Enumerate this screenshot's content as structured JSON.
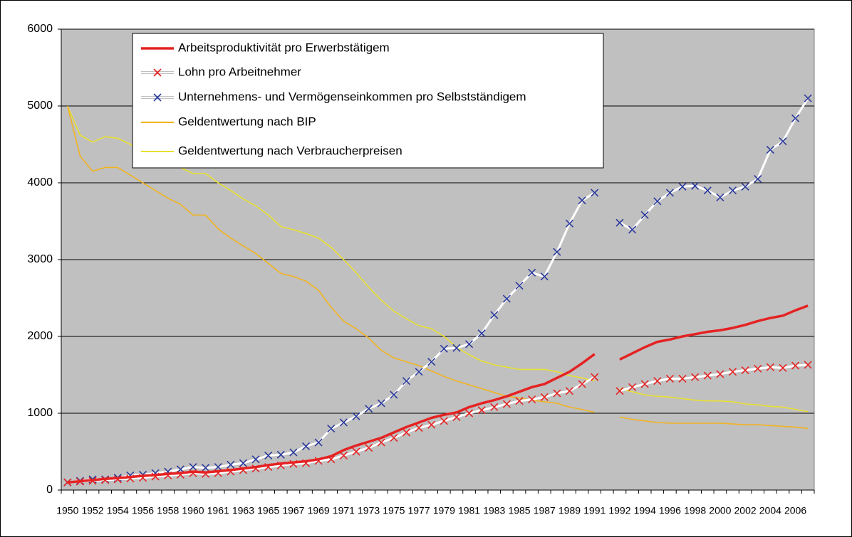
{
  "chart_data": {
    "type": "line",
    "categories": [
      "1950",
      null,
      "1952",
      null,
      "1954",
      null,
      "1956",
      null,
      "1958",
      null,
      "1960",
      null,
      "1961",
      null,
      "1963",
      null,
      "1965",
      null,
      "1967",
      null,
      "1969",
      null,
      "1971",
      null,
      "1973",
      null,
      "1975",
      null,
      "1977",
      null,
      "1979",
      null,
      "1981",
      null,
      "1983",
      null,
      "1985",
      null,
      "1987",
      null,
      "1989",
      null,
      "1991",
      null,
      "1992",
      null,
      "1994",
      null,
      "1996",
      null,
      "1998",
      null,
      "2000",
      null,
      "2002",
      null,
      "2004",
      null,
      "2006",
      null
    ],
    "ylim": [
      0,
      6000
    ],
    "yticks": [
      0,
      1000,
      2000,
      3000,
      4000,
      5000,
      6000
    ],
    "grid": true,
    "legend": "top-left",
    "series": [
      {
        "name": "Arbeitsproduktivität pro Erwerbstätigem",
        "color": "#e52222",
        "values": [
          100,
          115,
          130,
          145,
          155,
          170,
          185,
          195,
          210,
          220,
          240,
          230,
          245,
          260,
          280,
          300,
          325,
          345,
          360,
          375,
          400,
          440,
          520,
          580,
          630,
          680,
          750,
          820,
          880,
          940,
          980,
          1010,
          1080,
          1130,
          1170,
          1220,
          1280,
          1340,
          1380,
          1460,
          1540,
          1650,
          1770,
          null,
          1700,
          1780,
          1860,
          1930,
          1960,
          2000,
          2030,
          2060,
          2080,
          2110,
          2150,
          2200,
          2240,
          2270,
          2340,
          2400
        ]
      },
      {
        "name": "Lohn pro Arbeitnehmer",
        "color": "#ffffff",
        "marker_color": "#e52222",
        "values": [
          100,
          110,
          120,
          130,
          140,
          150,
          160,
          175,
          190,
          200,
          220,
          210,
          220,
          240,
          260,
          280,
          300,
          320,
          340,
          350,
          380,
          400,
          450,
          500,
          550,
          620,
          680,
          750,
          810,
          850,
          900,
          950,
          1000,
          1040,
          1080,
          1120,
          1160,
          1180,
          1210,
          1260,
          1290,
          1380,
          1470,
          null,
          1290,
          1340,
          1380,
          1420,
          1450,
          1450,
          1470,
          1490,
          1510,
          1540,
          1560,
          1580,
          1600,
          1590,
          1620,
          1630
        ]
      },
      {
        "name": "Unternehmens- und Vermögenseinkommen pro Selbstständigem",
        "color": "#ffffff",
        "marker_color": "#2b3a9c",
        "values": [
          100,
          120,
          140,
          140,
          160,
          190,
          200,
          220,
          240,
          270,
          300,
          290,
          300,
          330,
          350,
          400,
          450,
          460,
          490,
          570,
          620,
          800,
          880,
          960,
          1060,
          1130,
          1240,
          1420,
          1540,
          1670,
          1840,
          1850,
          1900,
          2040,
          2280,
          2490,
          2660,
          2830,
          2780,
          3100,
          3470,
          3770,
          3870,
          null,
          3480,
          3390,
          3580,
          3760,
          3870,
          3950,
          3960,
          3900,
          3810,
          3900,
          3950,
          4050,
          4430,
          4540,
          4840,
          5100
        ]
      },
      {
        "name": "Geldentwertung nach BIP",
        "color": "#f2b320",
        "values": [
          5000,
          4350,
          4150,
          4200,
          4200,
          4100,
          4000,
          3900,
          3800,
          3720,
          3580,
          3580,
          3400,
          3280,
          3180,
          3080,
          2950,
          2820,
          2780,
          2720,
          2600,
          2380,
          2200,
          2100,
          1980,
          1820,
          1720,
          1670,
          1620,
          1550,
          1480,
          1420,
          1370,
          1320,
          1270,
          1220,
          1200,
          1170,
          1150,
          1130,
          1080,
          1050,
          1010,
          null,
          950,
          920,
          900,
          880,
          870,
          870,
          870,
          870,
          870,
          860,
          850,
          850,
          840,
          830,
          820,
          800
        ]
      },
      {
        "name": "Geldentwertung nach Verbraucherpreisen",
        "color": "#e8e030",
        "values": [
          5000,
          4620,
          4530,
          4600,
          4580,
          4500,
          4400,
          4350,
          4280,
          4200,
          4120,
          4120,
          4000,
          3900,
          3790,
          3700,
          3580,
          3430,
          3390,
          3340,
          3280,
          3160,
          3000,
          2830,
          2640,
          2470,
          2330,
          2230,
          2140,
          2100,
          2000,
          1860,
          1760,
          1680,
          1630,
          1600,
          1570,
          1570,
          1570,
          1540,
          1490,
          1460,
          1420,
          null,
          1320,
          1280,
          1240,
          1220,
          1210,
          1190,
          1170,
          1160,
          1160,
          1150,
          1120,
          1110,
          1090,
          1080,
          1050,
          1020
        ]
      }
    ]
  }
}
